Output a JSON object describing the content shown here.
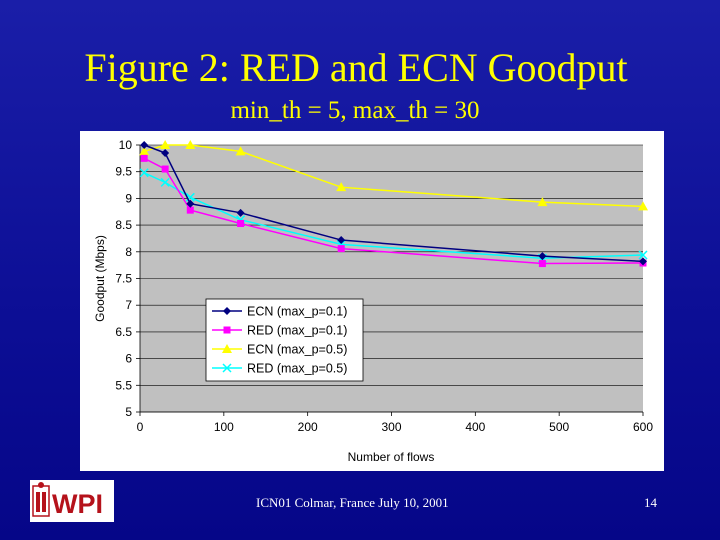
{
  "slide": {
    "title": "Figure 2: RED and ECN Goodput",
    "subtitle": "min_th = 5, max_th = 30",
    "footer": "ICN01 Colmar, France July 10, 2001",
    "page_number": "14",
    "logo_text": "WPI"
  },
  "colors": {
    "background": "#0d0f96",
    "title": "#ffff00",
    "plot_area": "#c0c0c0",
    "logo_red": "#b5121b"
  },
  "chart_data": {
    "type": "line",
    "title": "",
    "xlabel": "Number of flows",
    "ylabel": "Goodput (Mbps)",
    "xlim": [
      0,
      600
    ],
    "ylim": [
      5,
      10
    ],
    "xticks": [
      0,
      100,
      200,
      300,
      400,
      500,
      600
    ],
    "yticks": [
      5,
      5.5,
      6,
      6.5,
      7,
      7.5,
      8,
      8.5,
      9,
      9.5,
      10
    ],
    "ytick_labels": [
      "5",
      "5.5",
      "6",
      "6.5",
      "7",
      "7.5",
      "8",
      "8.5",
      "9",
      "9.5",
      "10"
    ],
    "grid": "horizontal",
    "legend_position": "lower-left",
    "series": [
      {
        "name": "ECN (max_p=0.1)",
        "color": "#000080",
        "marker": "diamond",
        "x": [
          5,
          30,
          60,
          120,
          240,
          480,
          600
        ],
        "y": [
          10.0,
          9.85,
          8.9,
          8.73,
          8.22,
          7.92,
          7.82
        ]
      },
      {
        "name": "RED (max_p=0.1)",
        "color": "#ff00ff",
        "marker": "square",
        "x": [
          5,
          30,
          60,
          120,
          240,
          480,
          600
        ],
        "y": [
          9.75,
          9.55,
          8.78,
          8.53,
          8.06,
          7.78,
          7.79
        ]
      },
      {
        "name": "ECN (max_p=0.5)",
        "color": "#ffff00",
        "marker": "triangle",
        "x": [
          5,
          30,
          60,
          120,
          240,
          480,
          600
        ],
        "y": [
          9.88,
          10.0,
          10.0,
          9.88,
          9.21,
          8.93,
          8.85
        ]
      },
      {
        "name": "RED (max_p=0.5)",
        "color": "#00ffff",
        "marker": "x",
        "x": [
          5,
          30,
          60,
          120,
          240,
          480,
          600
        ],
        "y": [
          9.48,
          9.3,
          9.02,
          8.6,
          8.14,
          7.88,
          7.94
        ]
      }
    ]
  }
}
